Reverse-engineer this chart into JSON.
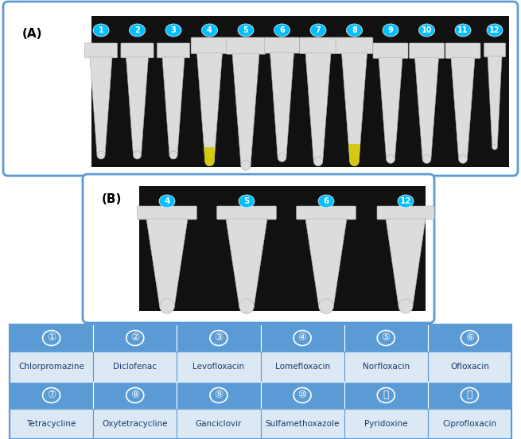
{
  "title_A": "(A)",
  "title_B": "(B)",
  "table_header_color": "#5B9BD5",
  "table_row_color": "#dce9f5",
  "box_edge_color": "#5B9BD5",
  "background_color": "#FFFFFF",
  "photo_A_bg": "#111111",
  "photo_B_bg": "#111111",
  "label_circle_color": "#00BFFF",
  "label_text_color": "#FFFFFF",
  "row1_numbers": [
    "①",
    "②",
    "③",
    "④",
    "⑤",
    "⑥"
  ],
  "row1_names": [
    "Chlorpromazine",
    "Diclofenac",
    "Levofloxacin",
    "Lomefloxacin",
    "Norfloxacin",
    "Ofloxacin"
  ],
  "row2_numbers": [
    "⑦",
    "⑧",
    "⑨",
    "⑩",
    "⑪",
    "⑫"
  ],
  "row2_names": [
    "Tetracycline",
    "Oxytetracycline",
    "Ganciclovir",
    "Sulfamethoxazole",
    "Pyridoxine",
    "Ciprofloxacin"
  ],
  "num_labels_A": [
    "1",
    "2",
    "3",
    "4",
    "5",
    "6",
    "7",
    "8",
    "9",
    "10",
    "11",
    "12"
  ],
  "num_labels_B": [
    "4",
    "5",
    "6",
    "12"
  ],
  "fig_width": 6.55,
  "fig_height": 5.52,
  "dpi": 100,
  "tube_body_color": "#dcdcdc",
  "tube_edge_color": "#aaaaaa",
  "tube_highlight": "#f5f5f5",
  "yellow_color": "#d4c800",
  "tube_cap_color": "#e0e0e0"
}
